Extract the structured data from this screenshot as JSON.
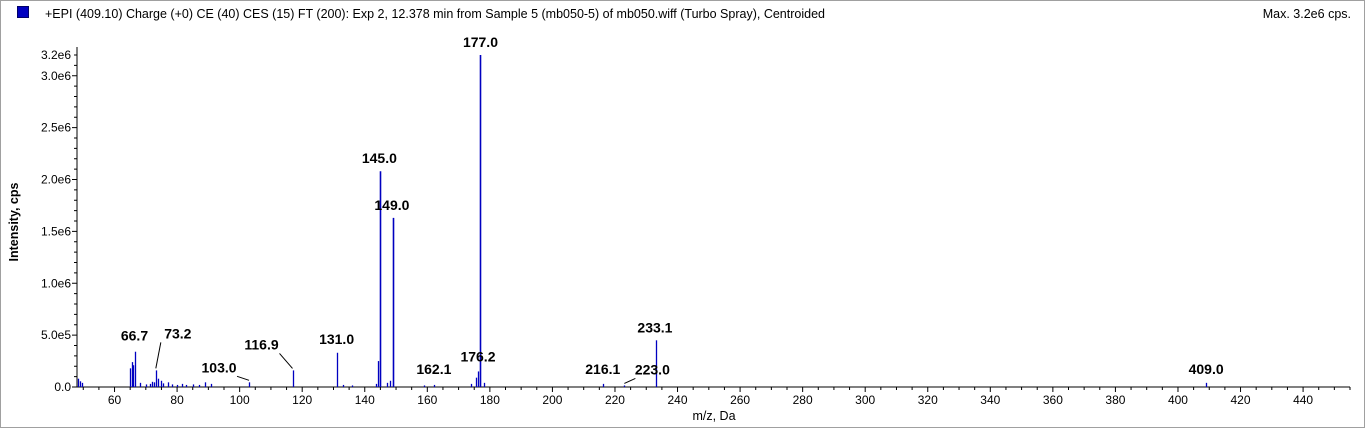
{
  "header": {
    "title": "+EPI (409.10) Charge (+0) CE (40) CES (15) FT (200): Exp 2, 12.378 min from Sample 5 (mb050-5) of mb050.wiff (Turbo Spray), Centroided",
    "max_label": "Max. 3.2e6 cps.",
    "series_color": "#0000c0"
  },
  "chart_data": {
    "type": "bar",
    "title": "+EPI (409.10) Charge (+0) CE (40) CES (15) FT (200): Exp 2, 12.378 min from Sample 5 (mb050-5) of mb050.wiff (Turbo Spray), Centroided",
    "xlabel": "m/z, Da",
    "ylabel": "Intensity, cps",
    "xlim": [
      48,
      455
    ],
    "ylim": [
      0,
      3200000
    ],
    "x_ticks": [
      60,
      80,
      100,
      120,
      140,
      160,
      180,
      200,
      220,
      240,
      260,
      280,
      300,
      320,
      340,
      360,
      380,
      400,
      420,
      440
    ],
    "y_ticks": [
      {
        "value": 0,
        "label": "0.0"
      },
      {
        "value": 500000,
        "label": "5.0e5"
      },
      {
        "value": 1000000,
        "label": "1.0e6"
      },
      {
        "value": 1500000,
        "label": "1.5e6"
      },
      {
        "value": 2000000,
        "label": "2.0e6"
      },
      {
        "value": 2500000,
        "label": "2.5e6"
      },
      {
        "value": 3000000,
        "label": "3.0e6"
      },
      {
        "value": 3200000,
        "label": "3.2e6"
      }
    ],
    "grid": false,
    "peaks": [
      {
        "mz": 48.3,
        "intensity": 80000
      },
      {
        "mz": 49.0,
        "intensity": 55000
      },
      {
        "mz": 49.6,
        "intensity": 40000
      },
      {
        "mz": 65.0,
        "intensity": 180000
      },
      {
        "mz": 65.5,
        "intensity": 240000
      },
      {
        "mz": 66.0,
        "intensity": 210000
      },
      {
        "mz": 66.7,
        "intensity": 340000
      },
      {
        "mz": 68.0,
        "intensity": 40000
      },
      {
        "mz": 70.0,
        "intensity": 25000
      },
      {
        "mz": 71.2,
        "intensity": 30000
      },
      {
        "mz": 72.0,
        "intensity": 50000
      },
      {
        "mz": 72.6,
        "intensity": 45000
      },
      {
        "mz": 73.2,
        "intensity": 160000
      },
      {
        "mz": 74.0,
        "intensity": 80000
      },
      {
        "mz": 74.7,
        "intensity": 60000
      },
      {
        "mz": 75.5,
        "intensity": 35000
      },
      {
        "mz": 77.0,
        "intensity": 45000
      },
      {
        "mz": 78.5,
        "intensity": 25000
      },
      {
        "mz": 80.0,
        "intensity": 20000
      },
      {
        "mz": 81.5,
        "intensity": 30000
      },
      {
        "mz": 83.0,
        "intensity": 20000
      },
      {
        "mz": 85.0,
        "intensity": 25000
      },
      {
        "mz": 87.0,
        "intensity": 20000
      },
      {
        "mz": 89.0,
        "intensity": 45000
      },
      {
        "mz": 91.0,
        "intensity": 30000
      },
      {
        "mz": 103.0,
        "intensity": 45000
      },
      {
        "mz": 116.9,
        "intensity": 160000
      },
      {
        "mz": 131.0,
        "intensity": 330000
      },
      {
        "mz": 133.0,
        "intensity": 20000
      },
      {
        "mz": 136.0,
        "intensity": 15000
      },
      {
        "mz": 143.5,
        "intensity": 30000
      },
      {
        "mz": 144.2,
        "intensity": 250000
      },
      {
        "mz": 145.0,
        "intensity": 2080000
      },
      {
        "mz": 147.0,
        "intensity": 40000
      },
      {
        "mz": 148.2,
        "intensity": 60000
      },
      {
        "mz": 149.0,
        "intensity": 1630000
      },
      {
        "mz": 159.0,
        "intensity": 15000
      },
      {
        "mz": 162.1,
        "intensity": 20000
      },
      {
        "mz": 174.0,
        "intensity": 30000
      },
      {
        "mz": 175.5,
        "intensity": 90000
      },
      {
        "mz": 176.2,
        "intensity": 150000
      },
      {
        "mz": 177.0,
        "intensity": 3200000
      },
      {
        "mz": 178.0,
        "intensity": 40000
      },
      {
        "mz": 216.1,
        "intensity": 30000
      },
      {
        "mz": 223.0,
        "intensity": 15000
      },
      {
        "mz": 233.1,
        "intensity": 450000
      },
      {
        "mz": 409.0,
        "intensity": 40000
      }
    ],
    "annotations": [
      {
        "label": "66.7",
        "mz": 66.7
      },
      {
        "label": "73.2",
        "mz": 73.2
      },
      {
        "label": "103.0",
        "mz": 103.0
      },
      {
        "label": "116.9",
        "mz": 116.9
      },
      {
        "label": "131.0",
        "mz": 131.0
      },
      {
        "label": "145.0",
        "mz": 145.0
      },
      {
        "label": "149.0",
        "mz": 149.0
      },
      {
        "label": "162.1",
        "mz": 162.1
      },
      {
        "label": "176.2",
        "mz": 176.2
      },
      {
        "label": "177.0",
        "mz": 177.0
      },
      {
        "label": "216.1",
        "mz": 216.1
      },
      {
        "label": "223.0",
        "mz": 223.0
      },
      {
        "label": "233.1",
        "mz": 233.1
      },
      {
        "label": "409.0",
        "mz": 409.0
      }
    ]
  }
}
